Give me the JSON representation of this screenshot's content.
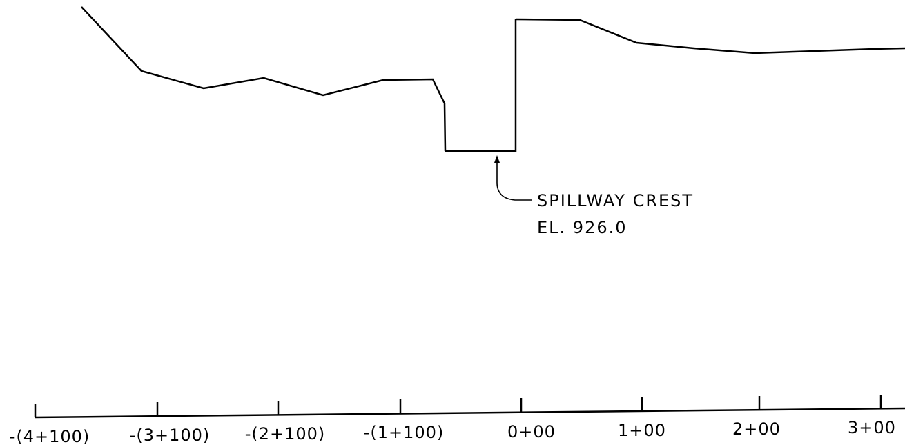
{
  "annotation": {
    "line1": "SPILLWAY CREST",
    "line2": "EL. 926.0"
  },
  "stations": [
    "-(4+100)",
    "-(3+100)",
    "-(2+100)",
    "-(1+100)",
    "0+00",
    "1+00",
    "2+00",
    "3+00"
  ],
  "colors": {
    "ink": "#000000",
    "background": "#ffffff"
  }
}
